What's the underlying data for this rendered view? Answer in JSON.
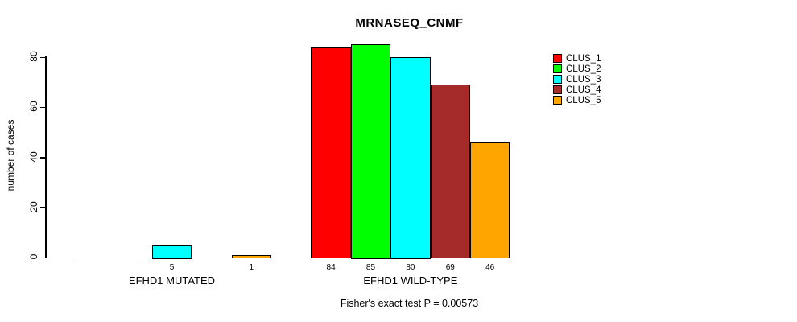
{
  "chart_data": {
    "type": "bar",
    "title": "MRNASEQ_CNMF",
    "ylabel": "number of cases",
    "xlabel": "",
    "ylim": [
      0,
      80
    ],
    "yticks": [
      0,
      20,
      40,
      60,
      80
    ],
    "grid": false,
    "legend_position": "top-right",
    "series_colors": [
      "#FF0000",
      "#00FF00",
      "#00FFFF",
      "#A52A2A",
      "#FFA500"
    ],
    "legend": [
      "CLUS_1",
      "CLUS_2",
      "CLUS_3",
      "CLUS_4",
      "CLUS_5"
    ],
    "groups": [
      {
        "label": "EFHD1 MUTATED",
        "values": [
          0,
          0,
          5,
          0,
          1
        ]
      },
      {
        "label": "EFHD1 WILD-TYPE",
        "values": [
          84,
          85,
          80,
          69,
          46
        ]
      }
    ],
    "visible_bar_labels": [
      "5",
      "1",
      "84",
      "85",
      "80",
      "69",
      "46"
    ],
    "annotation": "Fisher's exact test P = 0.00573"
  },
  "colors": {
    "background": "#FFFFFF",
    "axis": "#000000",
    "text": "#000000"
  }
}
